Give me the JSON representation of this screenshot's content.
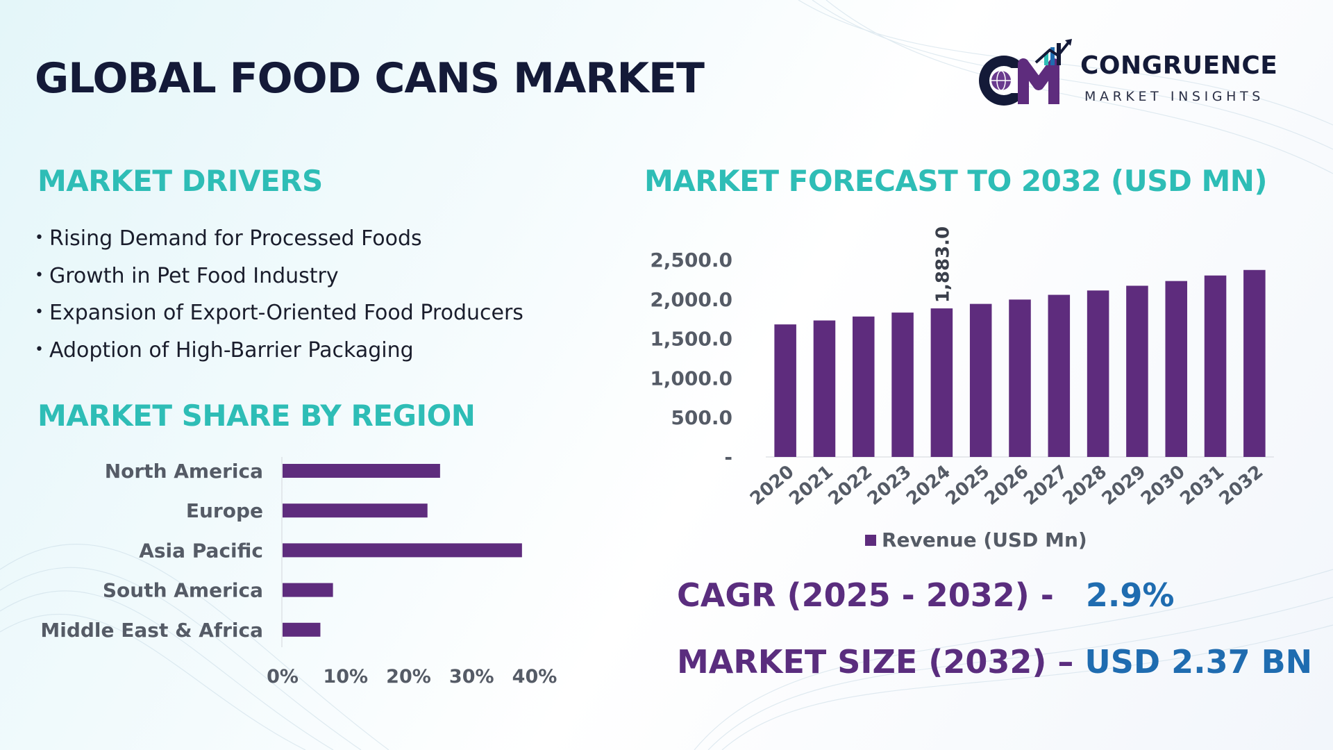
{
  "title": "GLOBAL FOOD CANS MARKET",
  "logo": {
    "name": "CONGRUENCE",
    "tagline": "MARKET INSIGHTS"
  },
  "drivers": {
    "heading": "MARKET DRIVERS",
    "items": [
      "Rising Demand for Processed Foods",
      "Growth in Pet Food Industry",
      "Expansion of Export-Oriented Food Producers",
      "Adoption of High-Barrier Packaging"
    ]
  },
  "region": {
    "heading": "MARKET SHARE BY REGION"
  },
  "forecast": {
    "heading": "MARKET FORECAST TO 2032 (USD MN)"
  },
  "kpis": {
    "cagr_label": "CAGR (2025 - 2032) -",
    "cagr_value": "2.9%",
    "size_label": "MARKET SIZE (2032) –",
    "size_value": "USD 2.37 BN"
  },
  "colors": {
    "bar": "#5e2c7d",
    "teal": "#2ebdb6",
    "navy": "#141a38",
    "blue": "#1f6cb0"
  },
  "chart_data": [
    {
      "type": "bar",
      "orientation": "horizontal",
      "categories": [
        "North America",
        "Europe",
        "Asia Pacific",
        "South America",
        "Middle East & Africa"
      ],
      "values": [
        25,
        23,
        38,
        8,
        6
      ],
      "unit": "%",
      "xlim": [
        0,
        40
      ],
      "xticks": [
        "0%",
        "10%",
        "20%",
        "30%",
        "40%"
      ],
      "grid": false
    },
    {
      "type": "bar",
      "categories": [
        "2020",
        "2021",
        "2022",
        "2023",
        "2024",
        "2025",
        "2026",
        "2027",
        "2028",
        "2029",
        "2030",
        "2031",
        "2032"
      ],
      "series": [
        {
          "name": "Revenue (USD Mn)",
          "values": [
            1680,
            1730,
            1780,
            1830,
            1883,
            1940,
            1995,
            2055,
            2110,
            2170,
            2230,
            2300,
            2370
          ]
        }
      ],
      "data_labels": [
        {
          "category": "2024",
          "text": "1,883.0"
        }
      ],
      "ylim": [
        0,
        2500
      ],
      "yticks": [
        "-",
        "500.0",
        "1,000.0",
        "1,500.0",
        "2,000.0",
        "2,500.0"
      ],
      "legend": "bottom",
      "grid": false
    }
  ]
}
